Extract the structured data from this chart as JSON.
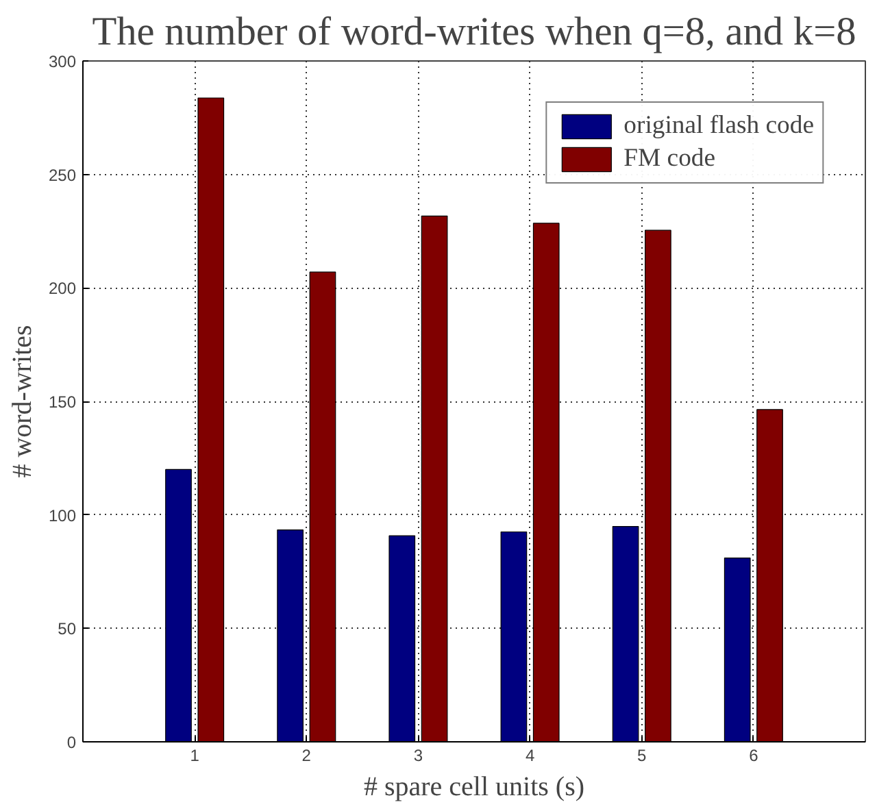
{
  "chart_data": {
    "type": "bar",
    "title": "The number of word-writes when q=8, and k=8",
    "xlabel": "# spare cell units (s)",
    "ylabel": "# word-writes",
    "x": [
      1,
      2,
      3,
      4,
      5,
      6
    ],
    "series": [
      {
        "name": "original flash code",
        "color": "#000080",
        "values": [
          120,
          93.4,
          90.8,
          92.5,
          94.9,
          81
        ]
      },
      {
        "name": "FM code",
        "color": "#800000",
        "values": [
          283.7,
          207,
          231.7,
          228.5,
          225.4,
          146.4
        ]
      }
    ],
    "xlim": [
      0,
      7
    ],
    "xticks": [
      1,
      2,
      3,
      4,
      5,
      6
    ],
    "ylim": [
      0,
      300
    ],
    "yticks": [
      0,
      50,
      100,
      150,
      200,
      250,
      300
    ],
    "grid": true,
    "legend": "top right"
  }
}
